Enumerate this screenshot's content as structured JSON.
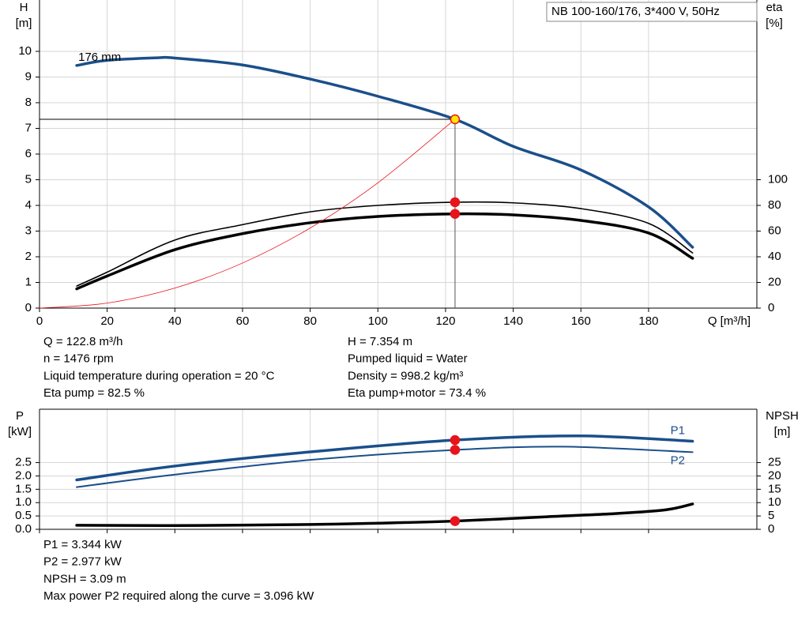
{
  "chart_data": [
    {
      "type": "line",
      "title": "NB 100-160/176, 3*400 V, 50Hz",
      "x_label": "Q [m³/h]",
      "y_label": [
        "H",
        "[m]"
      ],
      "y2_label": [
        "eta",
        "[%]"
      ],
      "xlim": [
        0,
        212
      ],
      "xticks": [
        0,
        20,
        40,
        60,
        80,
        100,
        120,
        140,
        160,
        180
      ],
      "ylim": [
        0,
        12
      ],
      "yticks": [
        0,
        1,
        2,
        3,
        4,
        5,
        6,
        7,
        8,
        9,
        10
      ],
      "y2lim": [
        0,
        240
      ],
      "y2ticks": [
        0,
        20,
        40,
        60,
        80,
        100
      ],
      "grid": true,
      "operating_point_x": 122.8,
      "series": [
        {
          "name": "176 mm",
          "color": "#1a4f8a",
          "width": 3.5,
          "marker_color": "#ffe600",
          "x": [
            11,
            20,
            35,
            40,
            60,
            80,
            100,
            122.8,
            140,
            160,
            180,
            193
          ],
          "values": [
            9.45,
            9.65,
            9.75,
            9.74,
            9.47,
            8.92,
            8.25,
            7.354,
            6.3,
            5.38,
            3.94,
            2.37
          ]
        },
        {
          "color": "#000000",
          "width": 1.6,
          "axis": "y2",
          "marker_color": "#e8141b",
          "x": [
            11,
            20,
            40,
            60,
            80,
            100,
            122.8,
            140,
            160,
            180,
            193
          ],
          "values": [
            17.2,
            28,
            53,
            65,
            75,
            80,
            82.5,
            82,
            77.5,
            66,
            43
          ]
        },
        {
          "color": "#000000",
          "width": 3.5,
          "axis": "y2",
          "marker_color": "#e8141b",
          "x": [
            11,
            20,
            40,
            60,
            80,
            100,
            122.8,
            140,
            160,
            180,
            193
          ],
          "values": [
            15,
            25,
            45.5,
            58,
            66.5,
            71.4,
            73.4,
            72.6,
            68.3,
            58.5,
            38.8
          ]
        },
        {
          "color": "#e8141b",
          "width": 0.8,
          "x": [
            0,
            20,
            40,
            60,
            80,
            100,
            122.8
          ],
          "values": [
            0,
            0.195,
            0.78,
            1.756,
            3.12,
            4.88,
            7.354
          ]
        }
      ],
      "info": [
        [
          "Q = 122.8 m³/h",
          "n = 1476 rpm",
          "Liquid temperature during operation = 20 °C",
          "Eta pump = 82.5 %"
        ],
        [
          "H = 7.354 m",
          "Pumped liquid = Water",
          "Density = 998.2 kg/m³",
          "Eta pump+motor = 73.4 %"
        ]
      ]
    },
    {
      "type": "line",
      "y_label": [
        "P",
        "[kW]"
      ],
      "y2_label": [
        "NPSH",
        "[m]"
      ],
      "xlim": [
        0,
        212
      ],
      "xticks": [
        0,
        20,
        40,
        60,
        80,
        100,
        120,
        140,
        160,
        180
      ],
      "ylim": [
        0,
        4.5
      ],
      "yticks": [
        {
          "value": 0,
          "label": "0.0"
        },
        0.5,
        {
          "value": 1,
          "label": "1.0"
        },
        1.5,
        {
          "value": 2,
          "label": "2.0"
        },
        2.5
      ],
      "y2lim": [
        0,
        45
      ],
      "y2ticks": [
        0,
        5,
        10,
        15,
        20,
        25
      ],
      "grid": true,
      "operating_point_x": 122.8,
      "series": [
        {
          "name": "P1",
          "color": "#1a4f8a",
          "width": 3.5,
          "marker_color": "#e8141b",
          "x": [
            11,
            40,
            80,
            122.8,
            160,
            193
          ],
          "values": [
            1.85,
            2.37,
            2.9,
            3.344,
            3.5,
            3.3
          ]
        },
        {
          "name": "P2",
          "color": "#1a4f8a",
          "width": 2,
          "marker_color": "#e8141b",
          "x": [
            11,
            40,
            80,
            122.8,
            155,
            193
          ],
          "values": [
            1.58,
            2.05,
            2.6,
            2.977,
            3.096,
            2.89
          ]
        },
        {
          "color": "#000000",
          "width": 3.5,
          "axis": "y2",
          "marker_color": "#e8141b",
          "x": [
            11,
            40,
            80,
            100,
            122.8,
            150,
            170,
            185,
            193
          ],
          "values": [
            1.5,
            1.4,
            1.8,
            2.3,
            3.09,
            4.7,
            5.9,
            7.3,
            9.5
          ]
        }
      ],
      "info": [
        [
          "P1 = 3.344 kW",
          "P2 = 2.977 kW",
          "NPSH = 3.09 m",
          "Max power P2 required along the curve = 3.096 kW"
        ]
      ]
    }
  ]
}
